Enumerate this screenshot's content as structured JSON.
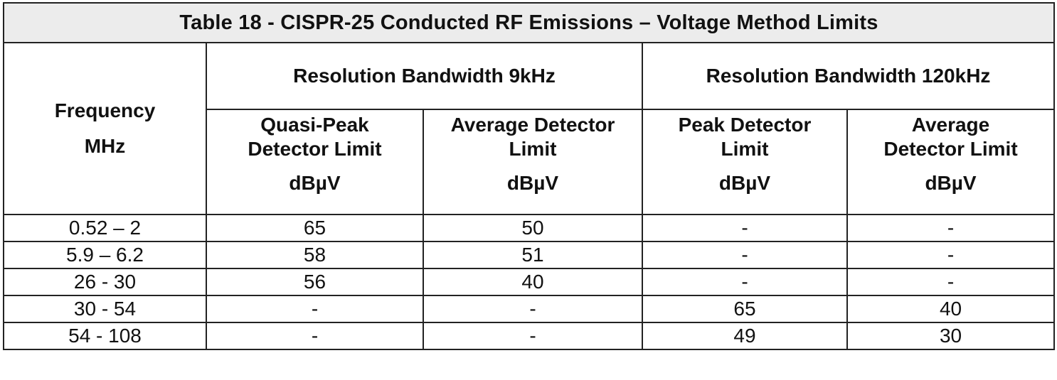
{
  "table": {
    "title": "Table 18  -  CISPR-25 Conducted RF Emissions –  Voltage Method Limits",
    "frequency_header": [
      "Frequency",
      "MHz"
    ],
    "groups": [
      "Resolution Bandwidth  9kHz",
      "Resolution Bandwidth  120kHz"
    ],
    "subheaders": [
      {
        "line1": "Quasi-Peak",
        "line2": "Detector Limit",
        "unit": "dBµV"
      },
      {
        "line1": "Average Detector",
        "line2": "Limit",
        "unit": "dBµV"
      },
      {
        "line1": "Peak Detector",
        "line2": "Limit",
        "unit": "dBµV"
      },
      {
        "line1": "Average",
        "line2": "Detector Limit",
        "unit": "dBµV"
      }
    ],
    "rows": [
      [
        "0.52 – 2",
        "65",
        "50",
        "-",
        "-"
      ],
      [
        "5.9 – 6.2",
        "58",
        "51",
        "-",
        "-"
      ],
      [
        "26 - 30",
        "56",
        "40",
        "-",
        "-"
      ],
      [
        "30 - 54",
        "-",
        "-",
        "65",
        "40"
      ],
      [
        "54 - 108",
        "-",
        "-",
        "49",
        "30"
      ]
    ]
  }
}
